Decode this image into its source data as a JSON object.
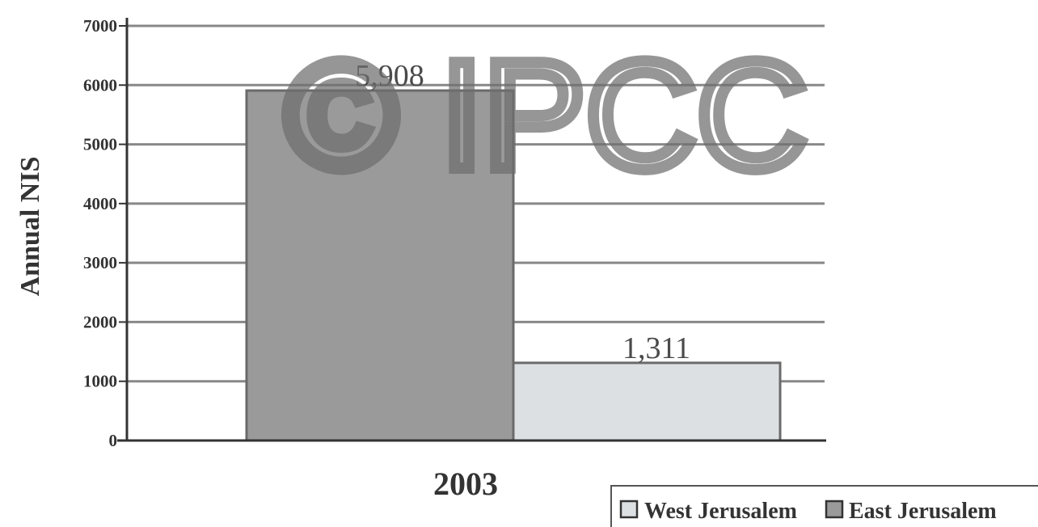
{
  "chart_data": {
    "type": "bar",
    "categories": [
      "2003"
    ],
    "series": [
      {
        "name": "West Jerusalem",
        "values": [
          1311
        ],
        "label": "1,311",
        "color": "#dde0e3"
      },
      {
        "name": "East Jerusalem",
        "values": [
          5908
        ],
        "label": "5,908",
        "color": "#9a9a9a"
      }
    ],
    "bar_order": [
      "East Jerusalem",
      "West Jerusalem"
    ],
    "ylabel": "Annual NIS",
    "xlabel": "",
    "ylim": [
      0,
      7000
    ],
    "yticks": [
      "0",
      "1000",
      "2000",
      "3000",
      "4000",
      "5000",
      "6000",
      "7000"
    ],
    "grid": true,
    "legend": [
      "West Jerusalem",
      "East Jerusalem"
    ],
    "legend_position": "bottom-right"
  },
  "watermark": "© IPCC"
}
